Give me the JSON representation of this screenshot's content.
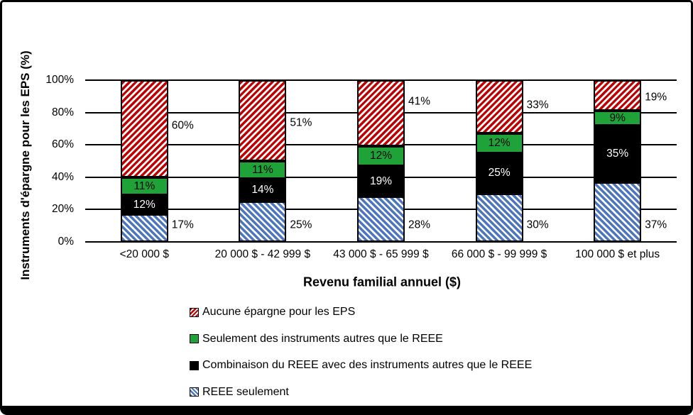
{
  "chart_data": {
    "type": "bar",
    "stacked": true,
    "xlabel": "Revenu familial annuel ($)",
    "ylabel": "Instruments d'épargne pour les EPS (%)",
    "ylim": [
      0,
      100
    ],
    "grid": true,
    "legend_position": "bottom-left",
    "y_ticks": [
      "0%",
      "20%",
      "40%",
      "60%",
      "80%",
      "100%"
    ],
    "categories": [
      "<20 000 $",
      "20 000 $ - 42 999 $",
      "43 000 $ - 65 999 $",
      "66 000 $ - 99 999 $",
      "100 000 $ et plus"
    ],
    "series": [
      {
        "name": "REEE seulement",
        "values": [
          17,
          25,
          28,
          30,
          37
        ],
        "labels": [
          "17%",
          "25%",
          "28%",
          "30%",
          "37%"
        ],
        "color": "#4D76BC",
        "pattern": "blue-hatch",
        "label_position": "right",
        "label_color": "#000000",
        "label_dy": [
          -5,
          4,
          8,
          10,
          18
        ]
      },
      {
        "name": "Combinaison du REEE avec des instruments autres que le REEE",
        "values": [
          12,
          14,
          19,
          25,
          35
        ],
        "labels": [
          "12%",
          "14%",
          "19%",
          "25%",
          "35%"
        ],
        "color": "#000000",
        "pattern": "solid-black",
        "label_position": "inside",
        "label_color": "#FFFFFF",
        "label_dy": [
          0,
          0,
          0,
          0,
          0
        ]
      },
      {
        "name": "Seulement des instruments autres que le REEE",
        "values": [
          11,
          11,
          12,
          12,
          9
        ],
        "labels": [
          "11%",
          "11%",
          "12%",
          "12%",
          "9%"
        ],
        "color": "#1FA338",
        "pattern": "solid-green",
        "label_position": "inside",
        "label_color": "#000000",
        "label_dy": [
          0,
          0,
          0,
          0,
          0
        ]
      },
      {
        "name": "Aucune épargne pour les EPS",
        "values": [
          60,
          51,
          41,
          33,
          19
        ],
        "labels": [
          "60%",
          "51%",
          "41%",
          "33%",
          "19%"
        ],
        "color": "#C00000",
        "pattern": "red-hatch",
        "label_position": "right",
        "label_color": "#000000",
        "label_dy": [
          -4,
          3,
          -17,
          -3,
          2
        ]
      }
    ],
    "legend_order": [
      3,
      2,
      1,
      0
    ]
  }
}
